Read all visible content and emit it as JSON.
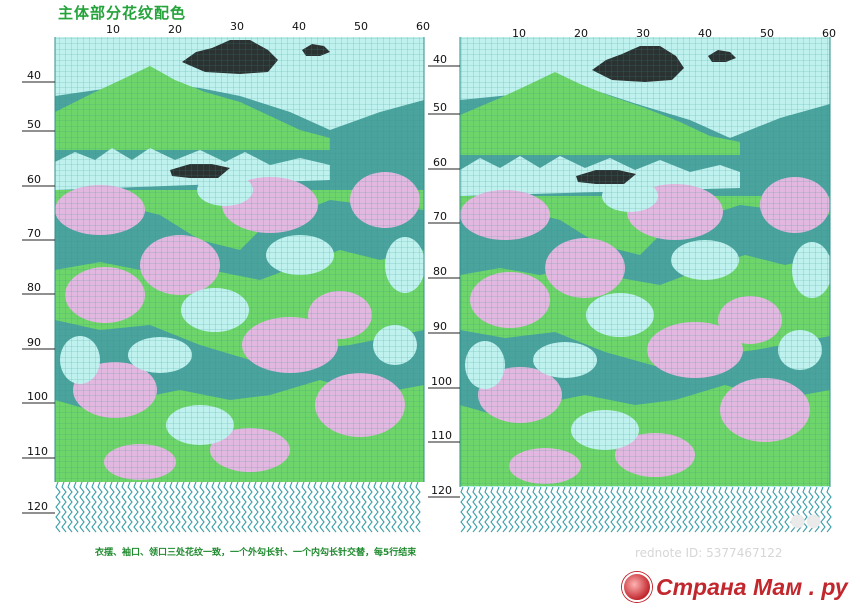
{
  "title": "主体部分花纹配色",
  "footnote": "衣摆、袖口、领口三处花纹一致，一个外勾长针、一个内勾长针交替，每5行结束",
  "watermark": "rednote ID: 5377467122",
  "logo_text": "Страна Мам . ру",
  "corner_mark": "●●",
  "colors": {
    "light_cyan": "#bff2ef",
    "teal": "#4ba39e",
    "green": "#6dd56a",
    "pink": "#e2b8e0",
    "black": "#111111",
    "grid_line": "#3fa7a0",
    "rib_stitch": "#3d9fa8"
  },
  "icons": {
    "logo": "stork-logo-icon",
    "watermark_mark": "rednote-mark-icon"
  },
  "left_chart": {
    "col_labels": [
      "10",
      "20",
      "30",
      "40",
      "50",
      "60"
    ],
    "row_labels": [
      "40",
      "50",
      "60",
      "70",
      "80",
      "90",
      "100",
      "110",
      "120"
    ]
  },
  "right_chart": {
    "col_labels": [
      "10",
      "20",
      "30",
      "40",
      "50",
      "60"
    ],
    "row_labels": [
      "40",
      "50",
      "60",
      "70",
      "80",
      "90",
      "100",
      "110",
      "120"
    ]
  }
}
